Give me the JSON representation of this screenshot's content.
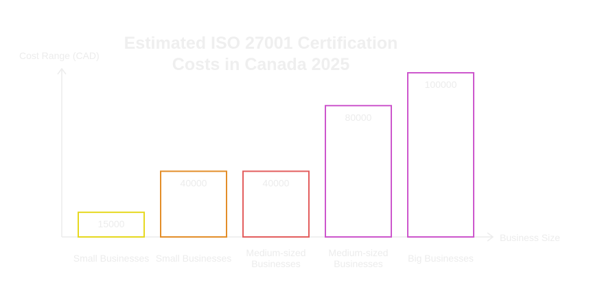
{
  "chart_data": {
    "type": "bar",
    "title": "Estimated ISO 27001 Certification Costs in Canada 2025",
    "y_label": "Cost Range (CAD)",
    "x_label": "Business Size",
    "categories": [
      "Small Businesses",
      "Small Businesses",
      "Medium-sized Businesses",
      "Medium-sized Businesses",
      "Big Businesses"
    ],
    "values": [
      15000,
      40000,
      40000,
      80000,
      100000
    ],
    "colors": [
      "#e6d81e",
      "#e38d28",
      "#e35d5d",
      "#cc55cc",
      "#cc55cc"
    ],
    "ylim": [
      0,
      102500
    ]
  }
}
